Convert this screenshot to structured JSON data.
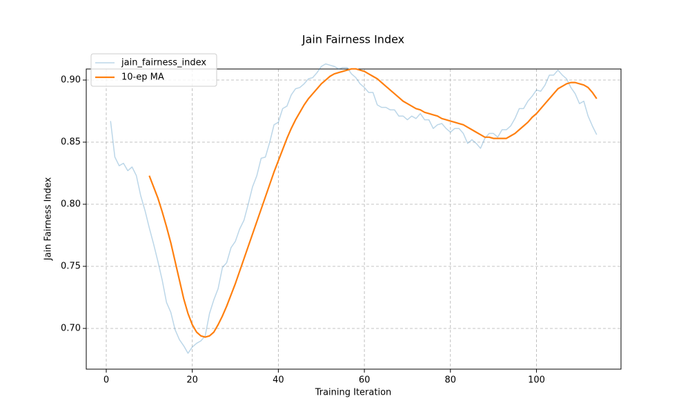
{
  "chart_data": {
    "type": "line",
    "title": "Jain Fairness Index",
    "xlabel": "Training Iteration",
    "ylabel": "Jain Fairness Index",
    "x": [
      1,
      2,
      3,
      4,
      5,
      6,
      7,
      8,
      9,
      10,
      11,
      12,
      13,
      14,
      15,
      16,
      17,
      18,
      19,
      20,
      21,
      22,
      23,
      24,
      25,
      26,
      27,
      28,
      29,
      30,
      31,
      32,
      33,
      34,
      35,
      36,
      37,
      38,
      39,
      40,
      41,
      42,
      43,
      44,
      45,
      46,
      47,
      48,
      49,
      50,
      51,
      52,
      53,
      54,
      55,
      56,
      57,
      58,
      59,
      60,
      61,
      62,
      63,
      64,
      65,
      66,
      67,
      68,
      69,
      70,
      71,
      72,
      73,
      74,
      75,
      76,
      77,
      78,
      79,
      80,
      81,
      82,
      83,
      84,
      85,
      86,
      87,
      88,
      89,
      90,
      91,
      92,
      93,
      94,
      95,
      96,
      97,
      98,
      99,
      100,
      101,
      102,
      103,
      104,
      105,
      106,
      107,
      108,
      109,
      110,
      111,
      112,
      113,
      114
    ],
    "series": [
      {
        "name": "jain_fairness_index",
        "color": "#1f77b4",
        "alpha": 0.3,
        "width": 1.5,
        "values": [
          0.867,
          0.838,
          0.831,
          0.833,
          0.827,
          0.83,
          0.823,
          0.807,
          0.795,
          0.781,
          0.768,
          0.754,
          0.739,
          0.721,
          0.713,
          0.699,
          0.691,
          0.686,
          0.68,
          0.685,
          0.688,
          0.69,
          0.694,
          0.712,
          0.723,
          0.732,
          0.749,
          0.753,
          0.765,
          0.77,
          0.78,
          0.787,
          0.8,
          0.814,
          0.823,
          0.837,
          0.838,
          0.85,
          0.864,
          0.866,
          0.877,
          0.879,
          0.888,
          0.893,
          0.894,
          0.897,
          0.901,
          0.902,
          0.906,
          0.911,
          0.913,
          0.912,
          0.911,
          0.909,
          0.91,
          0.91,
          0.905,
          0.902,
          0.897,
          0.894,
          0.89,
          0.89,
          0.88,
          0.878,
          0.878,
          0.876,
          0.876,
          0.871,
          0.871,
          0.868,
          0.871,
          0.869,
          0.873,
          0.868,
          0.868,
          0.861,
          0.864,
          0.865,
          0.861,
          0.858,
          0.861,
          0.861,
          0.857,
          0.849,
          0.852,
          0.849,
          0.845,
          0.853,
          0.857,
          0.857,
          0.854,
          0.86,
          0.86,
          0.863,
          0.869,
          0.877,
          0.877,
          0.883,
          0.887,
          0.892,
          0.891,
          0.896,
          0.904,
          0.904,
          0.908,
          0.904,
          0.901,
          0.894,
          0.889,
          0.881,
          0.883,
          0.871,
          0.863,
          0.856
        ]
      },
      {
        "name": "10-ep MA",
        "color": "#ff7f0e",
        "alpha": 1,
        "width": 2.2,
        "values": [
          null,
          null,
          null,
          null,
          null,
          null,
          null,
          null,
          null,
          0.823,
          0.814,
          0.805,
          0.794,
          0.782,
          0.769,
          0.754,
          0.739,
          0.724,
          0.712,
          0.703,
          0.697,
          0.694,
          0.693,
          0.694,
          0.697,
          0.703,
          0.71,
          0.718,
          0.727,
          0.736,
          0.746,
          0.756,
          0.766,
          0.776,
          0.786,
          0.796,
          0.806,
          0.816,
          0.826,
          0.835,
          0.844,
          0.853,
          0.861,
          0.868,
          0.874,
          0.88,
          0.885,
          0.889,
          0.893,
          0.897,
          0.9,
          0.903,
          0.905,
          0.906,
          0.907,
          0.908,
          0.909,
          0.909,
          0.908,
          0.907,
          0.905,
          0.903,
          0.901,
          0.898,
          0.895,
          0.892,
          0.889,
          0.886,
          0.883,
          0.881,
          0.879,
          0.877,
          0.876,
          0.874,
          0.873,
          0.872,
          0.871,
          0.869,
          0.868,
          0.867,
          0.866,
          0.865,
          0.864,
          0.862,
          0.86,
          0.858,
          0.856,
          0.854,
          0.854,
          0.853,
          0.853,
          0.853,
          0.853,
          0.855,
          0.857,
          0.86,
          0.863,
          0.866,
          0.87,
          0.873,
          0.877,
          0.881,
          0.885,
          0.889,
          0.893,
          0.895,
          0.897,
          0.898,
          0.898,
          0.897,
          0.896,
          0.894,
          0.89,
          0.885
        ]
      }
    ],
    "xlim": [
      -4.65,
      119.65
    ],
    "ylim": [
      0.6672,
      0.9089
    ],
    "xticks": [
      0,
      20,
      40,
      60,
      80,
      100
    ],
    "yticks": [
      {
        "value": 0.7,
        "label": "0.70"
      },
      0.75,
      {
        "value": 0.8,
        "label": "0.80"
      },
      0.85,
      {
        "value": 0.9,
        "label": "0.90"
      }
    ],
    "grid": true,
    "legend": "upper left"
  }
}
